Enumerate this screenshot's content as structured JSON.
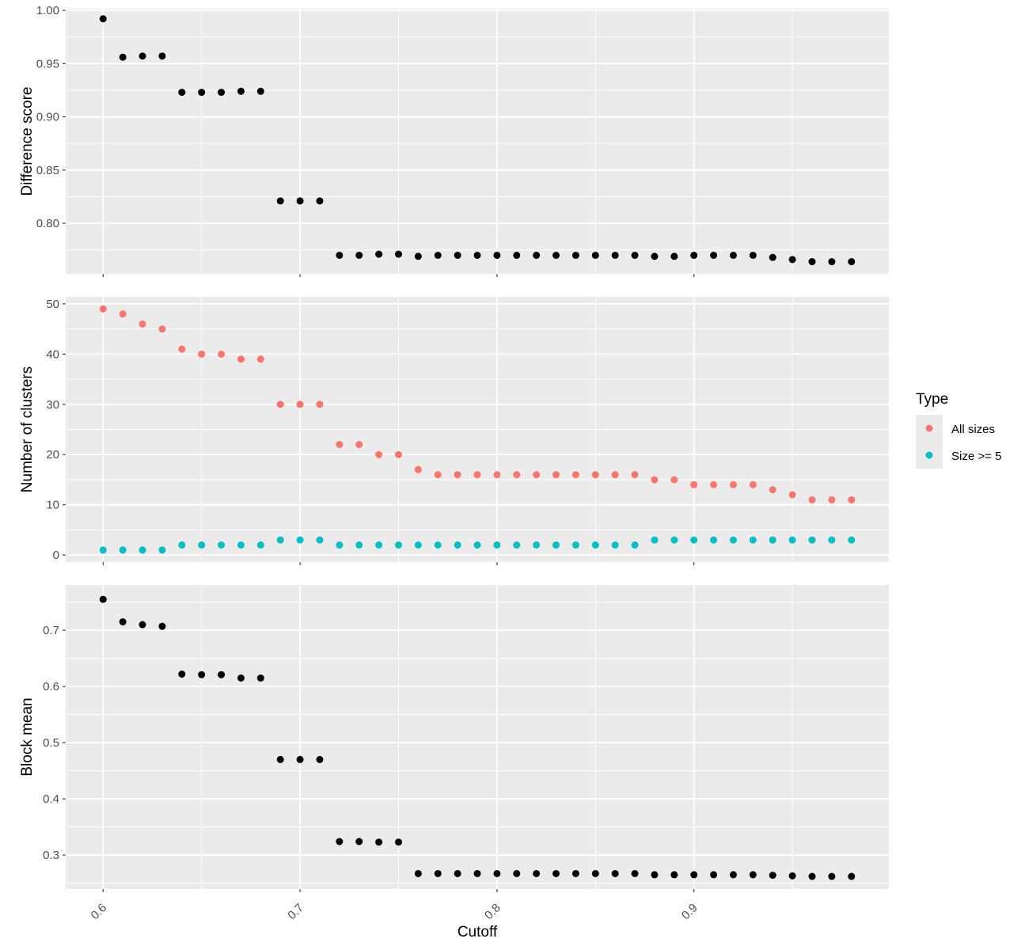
{
  "chart_data": [
    {
      "type": "scatter",
      "panel": "difference-score",
      "ylabel": "Difference score",
      "xlim": [
        0.581,
        0.999
      ],
      "ylim": [
        0.7525,
        1.0015
      ],
      "yticks": [
        0.8,
        0.85,
        0.9,
        0.95,
        1.0
      ],
      "ytick_labels": [
        "0.80",
        "0.85",
        "0.90",
        "0.95",
        "1.00"
      ],
      "series": [
        {
          "color": "#000000",
          "points": [
            [
              0.6,
              0.992
            ],
            [
              0.61,
              0.956
            ],
            [
              0.62,
              0.957
            ],
            [
              0.63,
              0.957
            ],
            [
              0.64,
              0.923
            ],
            [
              0.65,
              0.923
            ],
            [
              0.66,
              0.923
            ],
            [
              0.67,
              0.924
            ],
            [
              0.68,
              0.924
            ],
            [
              0.69,
              0.821
            ],
            [
              0.7,
              0.821
            ],
            [
              0.71,
              0.821
            ],
            [
              0.72,
              0.77
            ],
            [
              0.73,
              0.77
            ],
            [
              0.74,
              0.771
            ],
            [
              0.75,
              0.771
            ],
            [
              0.76,
              0.769
            ],
            [
              0.77,
              0.77
            ],
            [
              0.78,
              0.77
            ],
            [
              0.79,
              0.77
            ],
            [
              0.8,
              0.77
            ],
            [
              0.81,
              0.77
            ],
            [
              0.82,
              0.77
            ],
            [
              0.83,
              0.77
            ],
            [
              0.84,
              0.77
            ],
            [
              0.85,
              0.77
            ],
            [
              0.86,
              0.77
            ],
            [
              0.87,
              0.77
            ],
            [
              0.88,
              0.769
            ],
            [
              0.89,
              0.769
            ],
            [
              0.9,
              0.77
            ],
            [
              0.91,
              0.77
            ],
            [
              0.92,
              0.77
            ],
            [
              0.93,
              0.77
            ],
            [
              0.94,
              0.768
            ],
            [
              0.95,
              0.766
            ],
            [
              0.96,
              0.764
            ],
            [
              0.97,
              0.764
            ],
            [
              0.98,
              0.764
            ]
          ]
        }
      ]
    },
    {
      "type": "scatter",
      "panel": "number-of-clusters",
      "ylabel": "Number of clusters",
      "xlim": [
        0.581,
        0.999
      ],
      "ylim": [
        -1.4,
        51.4
      ],
      "yticks": [
        0,
        10,
        20,
        30,
        40,
        50
      ],
      "ytick_labels": [
        "0",
        "10",
        "20",
        "30",
        "40",
        "50"
      ],
      "series": [
        {
          "name": "All sizes",
          "color": "#F8766D",
          "points": [
            [
              0.6,
              49
            ],
            [
              0.61,
              48
            ],
            [
              0.62,
              46
            ],
            [
              0.63,
              45
            ],
            [
              0.64,
              41
            ],
            [
              0.65,
              40
            ],
            [
              0.66,
              40
            ],
            [
              0.67,
              39
            ],
            [
              0.68,
              39
            ],
            [
              0.69,
              30
            ],
            [
              0.7,
              30
            ],
            [
              0.71,
              30
            ],
            [
              0.72,
              22
            ],
            [
              0.73,
              22
            ],
            [
              0.74,
              20
            ],
            [
              0.75,
              20
            ],
            [
              0.76,
              17
            ],
            [
              0.77,
              16
            ],
            [
              0.78,
              16
            ],
            [
              0.79,
              16
            ],
            [
              0.8,
              16
            ],
            [
              0.81,
              16
            ],
            [
              0.82,
              16
            ],
            [
              0.83,
              16
            ],
            [
              0.84,
              16
            ],
            [
              0.85,
              16
            ],
            [
              0.86,
              16
            ],
            [
              0.87,
              16
            ],
            [
              0.88,
              15
            ],
            [
              0.89,
              15
            ],
            [
              0.9,
              14
            ],
            [
              0.91,
              14
            ],
            [
              0.92,
              14
            ],
            [
              0.93,
              14
            ],
            [
              0.94,
              13
            ],
            [
              0.95,
              12
            ],
            [
              0.96,
              11
            ],
            [
              0.97,
              11
            ],
            [
              0.98,
              11
            ]
          ]
        },
        {
          "name": "Size >= 5",
          "color": "#00BFC4",
          "points": [
            [
              0.6,
              1
            ],
            [
              0.61,
              1
            ],
            [
              0.62,
              1
            ],
            [
              0.63,
              1
            ],
            [
              0.64,
              2
            ],
            [
              0.65,
              2
            ],
            [
              0.66,
              2
            ],
            [
              0.67,
              2
            ],
            [
              0.68,
              2
            ],
            [
              0.69,
              3
            ],
            [
              0.7,
              3
            ],
            [
              0.71,
              3
            ],
            [
              0.72,
              2
            ],
            [
              0.73,
              2
            ],
            [
              0.74,
              2
            ],
            [
              0.75,
              2
            ],
            [
              0.76,
              2
            ],
            [
              0.77,
              2
            ],
            [
              0.78,
              2
            ],
            [
              0.79,
              2
            ],
            [
              0.8,
              2
            ],
            [
              0.81,
              2
            ],
            [
              0.82,
              2
            ],
            [
              0.83,
              2
            ],
            [
              0.84,
              2
            ],
            [
              0.85,
              2
            ],
            [
              0.86,
              2
            ],
            [
              0.87,
              2
            ],
            [
              0.88,
              3
            ],
            [
              0.89,
              3
            ],
            [
              0.9,
              3
            ],
            [
              0.91,
              3
            ],
            [
              0.92,
              3
            ],
            [
              0.93,
              3
            ],
            [
              0.94,
              3
            ],
            [
              0.95,
              3
            ],
            [
              0.96,
              3
            ],
            [
              0.97,
              3
            ],
            [
              0.98,
              3
            ]
          ]
        }
      ]
    },
    {
      "type": "scatter",
      "panel": "block-mean",
      "ylabel": "Block mean",
      "xlabel": "Cutoff",
      "xlim": [
        0.581,
        0.999
      ],
      "ylim": [
        0.2395,
        0.7805
      ],
      "yticks": [
        0.3,
        0.4,
        0.5,
        0.6,
        0.7
      ],
      "ytick_labels": [
        "0.3",
        "0.4",
        "0.5",
        "0.6",
        "0.7"
      ],
      "xticks": [
        0.6,
        0.7,
        0.8,
        0.9
      ],
      "xtick_labels": [
        "0.6",
        "0.7",
        "0.8",
        "0.9"
      ],
      "series": [
        {
          "color": "#000000",
          "points": [
            [
              0.6,
              0.755
            ],
            [
              0.61,
              0.715
            ],
            [
              0.62,
              0.71
            ],
            [
              0.63,
              0.707
            ],
            [
              0.64,
              0.622
            ],
            [
              0.65,
              0.621
            ],
            [
              0.66,
              0.621
            ],
            [
              0.67,
              0.615
            ],
            [
              0.68,
              0.615
            ],
            [
              0.69,
              0.47
            ],
            [
              0.7,
              0.47
            ],
            [
              0.71,
              0.47
            ],
            [
              0.72,
              0.324
            ],
            [
              0.73,
              0.324
            ],
            [
              0.74,
              0.323
            ],
            [
              0.75,
              0.323
            ],
            [
              0.76,
              0.267
            ],
            [
              0.77,
              0.267
            ],
            [
              0.78,
              0.267
            ],
            [
              0.79,
              0.267
            ],
            [
              0.8,
              0.267
            ],
            [
              0.81,
              0.267
            ],
            [
              0.82,
              0.267
            ],
            [
              0.83,
              0.267
            ],
            [
              0.84,
              0.267
            ],
            [
              0.85,
              0.267
            ],
            [
              0.86,
              0.267
            ],
            [
              0.87,
              0.267
            ],
            [
              0.88,
              0.265
            ],
            [
              0.89,
              0.265
            ],
            [
              0.9,
              0.265
            ],
            [
              0.91,
              0.265
            ],
            [
              0.92,
              0.265
            ],
            [
              0.93,
              0.265
            ],
            [
              0.94,
              0.264
            ],
            [
              0.95,
              0.263
            ],
            [
              0.96,
              0.262
            ],
            [
              0.97,
              0.262
            ],
            [
              0.98,
              0.262
            ]
          ]
        }
      ]
    }
  ],
  "legend": {
    "title": "Type",
    "items": [
      {
        "label": "All sizes",
        "color": "#F8766D"
      },
      {
        "label": "Size >= 5",
        "color": "#00BFC4"
      }
    ]
  },
  "panel_background": "#EBEBEB",
  "grid_color": "#FFFFFF"
}
